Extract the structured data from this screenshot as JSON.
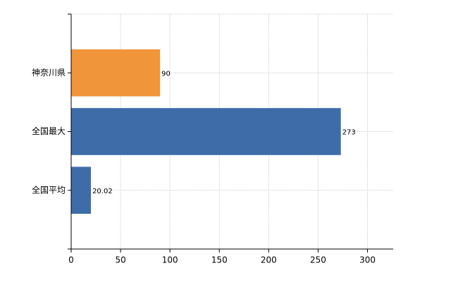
{
  "chart_data": {
    "type": "bar",
    "orientation": "horizontal",
    "categories": [
      "神奈川県",
      "全国最大",
      "全国平均"
    ],
    "values": [
      90,
      273,
      20.02
    ],
    "colors": [
      "#f0953a",
      "#3d6ca8",
      "#3d6ca8"
    ],
    "xlim": [
      0,
      326
    ],
    "xticks": [
      0,
      50,
      100,
      150,
      200,
      250,
      300
    ],
    "grid": true
  }
}
